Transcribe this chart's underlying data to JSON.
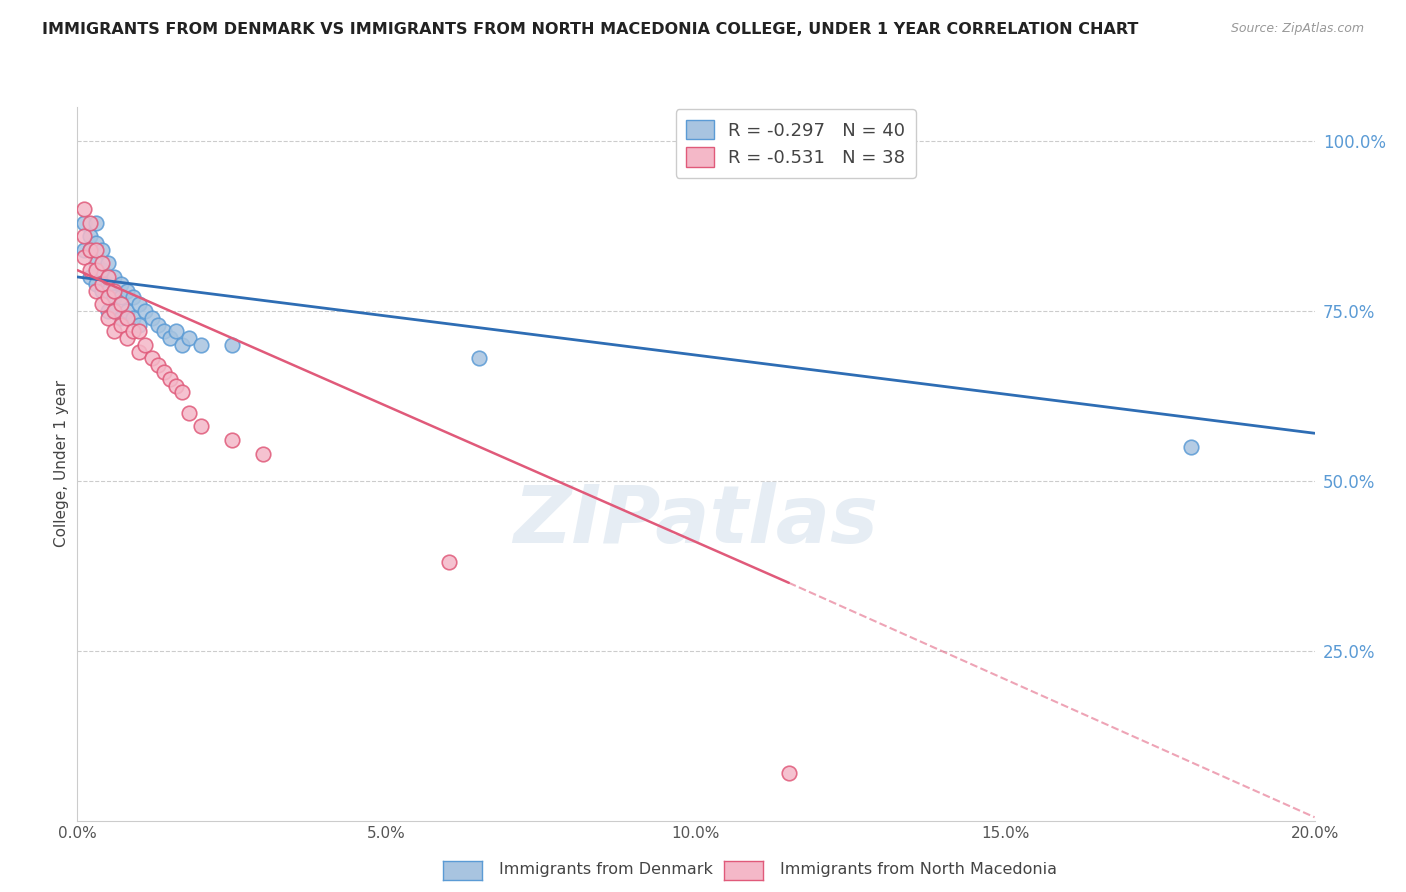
{
  "title": "IMMIGRANTS FROM DENMARK VS IMMIGRANTS FROM NORTH MACEDONIA COLLEGE, UNDER 1 YEAR CORRELATION CHART",
  "source": "Source: ZipAtlas.com",
  "ylabel": "College, Under 1 year",
  "right_ytick_labels": [
    "100.0%",
    "75.0%",
    "50.0%",
    "25.0%"
  ],
  "right_ytick_values": [
    1.0,
    0.75,
    0.5,
    0.25
  ],
  "xlim": [
    0.0,
    0.2
  ],
  "ylim": [
    0.0,
    1.05
  ],
  "legend_r1": "R = -0.297",
  "legend_n1": "N = 40",
  "legend_r2": "R = -0.531",
  "legend_n2": "N = 38",
  "denmark_color": "#a8c4e0",
  "denmark_edge_color": "#5b9bd5",
  "nmacedonia_color": "#f4b8c8",
  "nmacedonia_edge_color": "#e05a7a",
  "trend_denmark_color": "#2e6db4",
  "trend_nmacedonia_color": "#e05a7a",
  "watermark": "ZIPatlas",
  "denmark_x": [
    0.001,
    0.001,
    0.002,
    0.002,
    0.002,
    0.003,
    0.003,
    0.003,
    0.003,
    0.004,
    0.004,
    0.004,
    0.005,
    0.005,
    0.005,
    0.005,
    0.006,
    0.006,
    0.006,
    0.007,
    0.007,
    0.007,
    0.008,
    0.008,
    0.009,
    0.009,
    0.01,
    0.01,
    0.011,
    0.012,
    0.013,
    0.014,
    0.015,
    0.016,
    0.017,
    0.018,
    0.02,
    0.025,
    0.065,
    0.18
  ],
  "denmark_y": [
    0.88,
    0.84,
    0.86,
    0.84,
    0.8,
    0.88,
    0.85,
    0.82,
    0.79,
    0.84,
    0.81,
    0.78,
    0.82,
    0.79,
    0.78,
    0.75,
    0.8,
    0.77,
    0.75,
    0.79,
    0.77,
    0.74,
    0.78,
    0.75,
    0.77,
    0.74,
    0.76,
    0.73,
    0.75,
    0.74,
    0.73,
    0.72,
    0.71,
    0.72,
    0.7,
    0.71,
    0.7,
    0.7,
    0.68,
    0.55
  ],
  "nmacedonia_x": [
    0.001,
    0.001,
    0.001,
    0.002,
    0.002,
    0.002,
    0.003,
    0.003,
    0.003,
    0.004,
    0.004,
    0.004,
    0.005,
    0.005,
    0.005,
    0.006,
    0.006,
    0.006,
    0.007,
    0.007,
    0.008,
    0.008,
    0.009,
    0.01,
    0.01,
    0.011,
    0.012,
    0.013,
    0.014,
    0.015,
    0.016,
    0.017,
    0.018,
    0.02,
    0.025,
    0.03,
    0.06,
    0.115
  ],
  "nmacedonia_y": [
    0.9,
    0.86,
    0.83,
    0.88,
    0.84,
    0.81,
    0.84,
    0.81,
    0.78,
    0.82,
    0.79,
    0.76,
    0.8,
    0.77,
    0.74,
    0.78,
    0.75,
    0.72,
    0.76,
    0.73,
    0.74,
    0.71,
    0.72,
    0.72,
    0.69,
    0.7,
    0.68,
    0.67,
    0.66,
    0.65,
    0.64,
    0.63,
    0.6,
    0.58,
    0.56,
    0.54,
    0.38,
    0.07
  ],
  "trend_dk_x0": 0.0,
  "trend_dk_x1": 0.2,
  "trend_dk_y0": 0.8,
  "trend_dk_y1": 0.57,
  "trend_nm_x0": 0.0,
  "trend_nm_x1": 0.115,
  "trend_nm_y0": 0.81,
  "trend_nm_y1": 0.35,
  "trend_nm_dash_x0": 0.115,
  "trend_nm_dash_x1": 0.2,
  "trend_nm_dash_y0": 0.35,
  "trend_nm_dash_y1": 0.005
}
